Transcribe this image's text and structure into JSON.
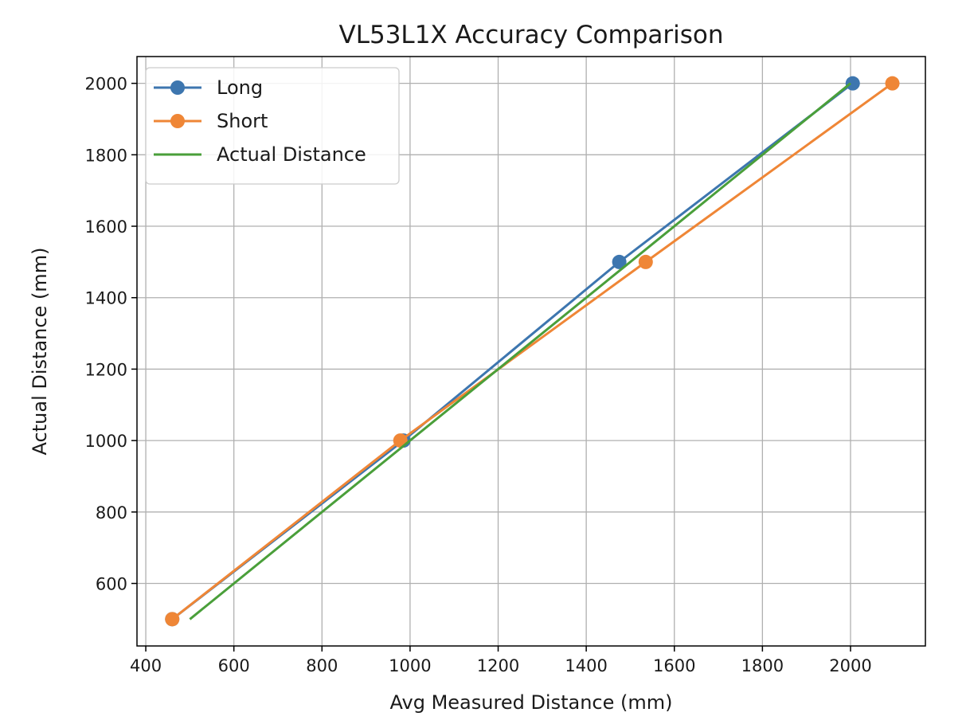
{
  "chart_data": {
    "type": "line",
    "title": "VL53L1X Accuracy Comparison",
    "xlabel": "Avg Measured Distance (mm)",
    "ylabel": "Actual Distance (mm)",
    "xlim": [
      380,
      2170
    ],
    "ylim": [
      425,
      2075
    ],
    "xticks": [
      400,
      600,
      800,
      1000,
      1200,
      1400,
      1600,
      1800,
      2000
    ],
    "yticks": [
      600,
      800,
      1000,
      1200,
      1400,
      1600,
      1800,
      2000
    ],
    "grid": true,
    "legend_position": "upper-left",
    "series": [
      {
        "name": "Long",
        "color": "#3d76af",
        "marker": "circle",
        "x": [
          460,
          985,
          1475,
          2005
        ],
        "y": [
          500,
          1000,
          1500,
          2000
        ]
      },
      {
        "name": "Short",
        "color": "#ef8636",
        "marker": "circle",
        "x": [
          460,
          978,
          1535,
          2095
        ],
        "y": [
          500,
          1000,
          1500,
          2000
        ]
      },
      {
        "name": "Actual Distance",
        "color": "#4a9f3a",
        "marker": "none",
        "x": [
          500,
          1000,
          1500,
          2000
        ],
        "y": [
          500,
          1000,
          1500,
          2000
        ]
      }
    ]
  }
}
